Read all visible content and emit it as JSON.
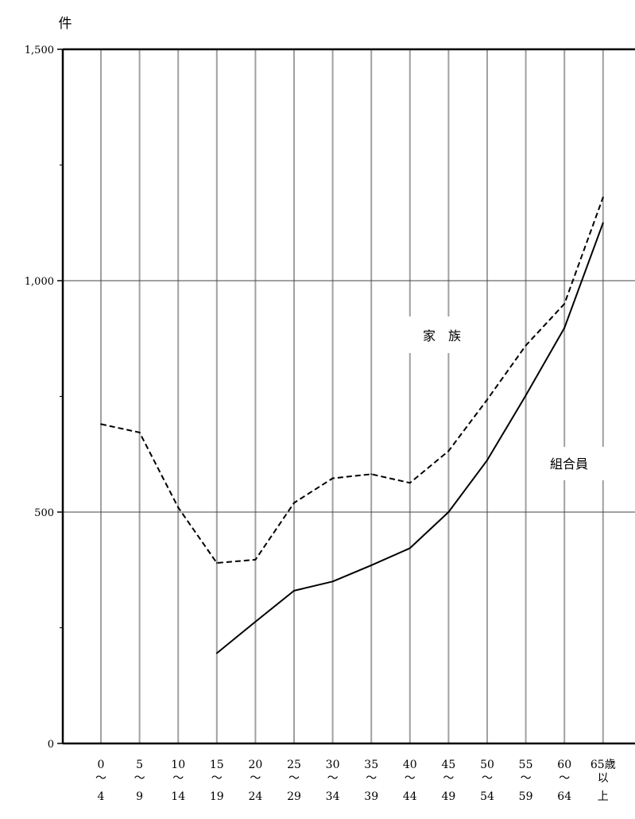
{
  "chart_data": {
    "type": "line",
    "ylabel": "件",
    "ylim": [
      0,
      1500
    ],
    "yticks": [
      0,
      500,
      1000,
      1500
    ],
    "ytick_labels": [
      "0",
      "500",
      "1,000",
      "1,500"
    ],
    "minor_ticks": [
      250,
      750,
      1250
    ],
    "grid": true,
    "categories": [
      [
        "0",
        "〜",
        "4"
      ],
      [
        "5",
        "〜",
        "9"
      ],
      [
        "10",
        "〜",
        "14"
      ],
      [
        "15",
        "〜",
        "19"
      ],
      [
        "20",
        "〜",
        "24"
      ],
      [
        "25",
        "〜",
        "29"
      ],
      [
        "30",
        "〜",
        "34"
      ],
      [
        "35",
        "〜",
        "39"
      ],
      [
        "40",
        "〜",
        "44"
      ],
      [
        "45",
        "〜",
        "49"
      ],
      [
        "50",
        "〜",
        "54"
      ],
      [
        "55",
        "〜",
        "59"
      ],
      [
        "60",
        "〜",
        "64"
      ],
      [
        "65歳",
        "以",
        "上"
      ]
    ],
    "series": [
      {
        "name": "家　族",
        "style": "dashed",
        "color": "#000000",
        "values": [
          690,
          672,
          510,
          390,
          397,
          520,
          573,
          582,
          563,
          632,
          743,
          860,
          950,
          1180
        ]
      },
      {
        "name": "組合員",
        "style": "solid",
        "color": "#000000",
        "values": [
          null,
          null,
          null,
          195,
          263,
          330,
          350,
          385,
          422,
          500,
          612,
          752,
          898,
          1125
        ]
      }
    ]
  }
}
